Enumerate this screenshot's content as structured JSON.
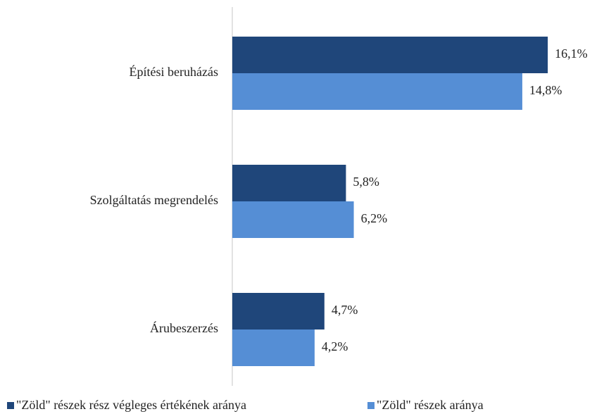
{
  "chart_data": {
    "type": "hbar",
    "categories": [
      "Építési beruházás",
      "Szolgáltatás megrendelés",
      "Árubeszerzés"
    ],
    "series": [
      {
        "name": "\"Zöld\" részek rész végleges értékének aránya",
        "color": "#1f467a",
        "values": [
          16.1,
          5.8,
          4.7
        ],
        "value_labels": [
          "16,1%",
          "5,8%",
          "4,7%"
        ]
      },
      {
        "name": "\"Zöld\" részek aránya",
        "color": "#558ed5",
        "values": [
          14.8,
          6.2,
          4.2
        ],
        "value_labels": [
          "14,8%",
          "6,2%",
          "4,2%"
        ]
      }
    ],
    "xlim": [
      0,
      18
    ],
    "legend": "bottom"
  }
}
